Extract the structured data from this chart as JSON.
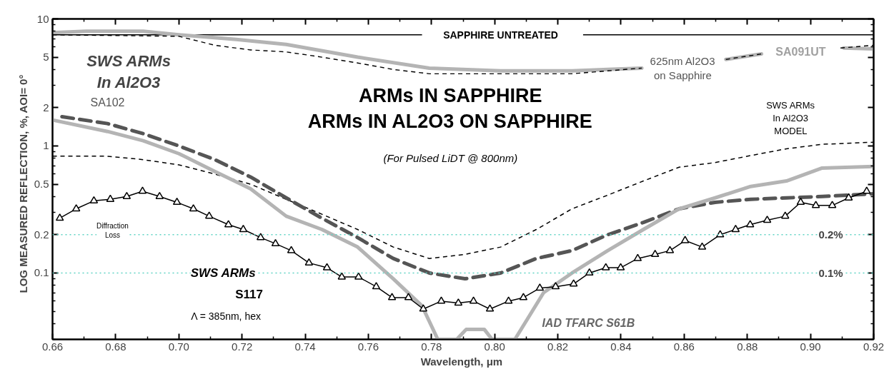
{
  "chart_data": {
    "type": "line",
    "title": "ARMs IN SAPPHIRE\nARMs IN AL2O3 ON SAPPHIRE",
    "subtitle": "(For Pulsed LiDT @ 800nm)",
    "xlabel": "Wavelength,  μm",
    "ylabel": "LOG MEASURED REFLECTION, %,    AOI= 0°",
    "log": "y",
    "xlim": [
      0.66,
      0.92
    ],
    "xticks": [
      0.66,
      {
        "value": 0.67,
        "label": null
      },
      0.68,
      {
        "value": 0.69,
        "label": null
      },
      "0.70",
      {
        "value": 0.71,
        "label": null
      },
      0.72,
      {
        "value": 0.73,
        "label": null
      },
      0.74,
      {
        "value": 0.75,
        "label": null
      },
      0.76,
      {
        "value": 0.77,
        "label": null
      },
      0.78,
      {
        "value": 0.79,
        "label": null
      },
      "0.80",
      {
        "value": 0.81,
        "label": null
      },
      0.82,
      {
        "value": 0.83,
        "label": null
      },
      0.84,
      {
        "value": 0.85,
        "label": null
      },
      0.86,
      {
        "value": 0.87,
        "label": null
      },
      0.88,
      {
        "value": 0.89,
        "label": null
      },
      "0.90",
      {
        "value": 0.91,
        "label": null
      },
      0.92
    ],
    "ylim": [
      0.03,
      10
    ],
    "yticks": [
      {
        "value": 0.03,
        "label": null
      },
      {
        "value": 0.04,
        "label": null
      },
      {
        "value": 0.05,
        "label": null
      },
      {
        "value": 0.06,
        "label": null
      },
      {
        "value": 0.07,
        "label": null
      },
      {
        "value": 0.08,
        "label": null
      },
      {
        "value": 0.09,
        "label": null
      },
      0.1,
      0.2,
      {
        "value": 0.3,
        "label": null
      },
      {
        "value": 0.4,
        "label": null
      },
      0.5,
      {
        "value": 0.6,
        "label": null
      },
      {
        "value": 0.7,
        "label": null
      },
      {
        "value": 0.8,
        "label": null
      },
      {
        "value": 0.9,
        "label": null
      },
      1,
      2,
      {
        "value": 3,
        "label": null
      },
      {
        "value": 4,
        "label": null
      },
      5,
      {
        "value": 6,
        "label": null
      },
      {
        "value": 7,
        "label": null
      },
      {
        "value": 8,
        "label": null
      },
      {
        "value": 9,
        "label": null
      },
      10
    ],
    "grid": false,
    "series": [
      {
        "color": "#000000",
        "line_style": "solid",
        "x": [
          0.66,
          0.777,
          0.8,
          0.828,
          0.92
        ],
        "values": [
          7.5,
          7.5,
          null,
          7.5,
          7.5
        ]
      },
      {
        "color": "#b4b4b4",
        "line_style": "solid",
        "x": [
          0.66,
          0.6706,
          0.6887,
          0.7,
          0.7182,
          0.734,
          0.7566,
          0.7793,
          0.8019,
          0.8245,
          0.8358,
          0.8466,
          0.86,
          0.8732,
          0.8845,
          0.897,
          0.9105,
          0.92
        ],
        "values": [
          7.8,
          8.0,
          8.0,
          7.5,
          6.9,
          6.3,
          5.0,
          4.1,
          3.9,
          3.9,
          4.0,
          4.1,
          null,
          4.8,
          5.3,
          null,
          5.9,
          5.8
        ]
      },
      {
        "color": "#000000",
        "line_style": "dashed",
        "x": [
          0.66,
          0.7,
          0.7114,
          0.7227,
          0.734,
          0.7453,
          0.7566,
          0.7679,
          0.7793,
          0.8019,
          0.8245,
          0.8358,
          0.8466,
          0.86,
          0.8732,
          0.8845,
          0.897,
          0.9095,
          0.92
        ],
        "values": [
          7.5,
          7.3,
          6.2,
          5.7,
          5.5,
          5.0,
          4.5,
          4.0,
          3.7,
          3.7,
          3.7,
          3.9,
          4.1,
          null,
          4.8,
          5.3,
          null,
          5.9,
          6.2
        ]
      },
      {
        "color": "#000000",
        "line_style": "dashed",
        "x": [
          0.66,
          0.6774,
          0.6887,
          0.7,
          0.7114,
          0.7227,
          0.734,
          0.7453,
          0.7566,
          0.7679,
          0.7793,
          0.7906,
          0.8019,
          0.8132,
          0.8245,
          0.8358,
          0.8471,
          0.8584,
          0.8698,
          0.8811,
          0.8924,
          0.9037,
          0.92
        ],
        "values": [
          0.83,
          0.83,
          0.78,
          0.71,
          0.6,
          0.5,
          0.38,
          0.29,
          0.22,
          0.16,
          0.13,
          0.14,
          0.16,
          0.22,
          0.32,
          0.41,
          0.53,
          0.68,
          0.74,
          0.84,
          0.95,
          1.03,
          1.07
        ]
      },
      {
        "color": "#555555",
        "line_style": "dashed",
        "x": [
          0.663,
          0.6774,
          0.6887,
          0.7,
          0.7114,
          0.7227,
          0.734,
          0.7453,
          0.7566,
          0.7679,
          0.7793,
          0.7906,
          0.8019,
          0.8132,
          0.8245,
          0.8358,
          0.8471,
          0.8584,
          0.8698,
          0.8811,
          0.8924,
          0.9037,
          0.92
        ],
        "values": [
          1.7,
          1.5,
          1.25,
          1.0,
          0.78,
          0.57,
          0.39,
          0.27,
          0.19,
          0.13,
          0.1,
          0.09,
          0.1,
          0.13,
          0.15,
          0.2,
          0.25,
          0.32,
          0.36,
          0.38,
          0.39,
          0.4,
          0.42
        ]
      },
      {
        "color": "#b4b4b4",
        "line_style": "solid",
        "x": [
          0.66,
          0.6774,
          0.6887,
          0.7,
          0.7114,
          0.7227,
          0.734,
          0.7453,
          0.7566,
          0.7679,
          0.777,
          0.782,
          0.788,
          0.791,
          0.7967,
          0.7992,
          0.8064,
          0.811,
          0.8155,
          0.8245,
          0.8358,
          0.8471,
          0.8584,
          0.8698,
          0.8811,
          0.8924,
          0.9037,
          0.92
        ],
        "values": [
          1.6,
          1.3,
          1.1,
          0.87,
          0.63,
          0.46,
          0.28,
          0.22,
          0.16,
          0.09,
          0.055,
          0.03,
          0.03,
          0.036,
          0.036,
          0.03,
          0.03,
          0.046,
          0.07,
          0.1,
          0.15,
          0.22,
          0.32,
          0.39,
          0.48,
          0.53,
          0.67,
          0.69
        ]
      },
      {
        "color": "#000000",
        "line_style": "solid",
        "marker": "triangle",
        "x": [
          0.6623,
          0.6675,
          0.6731,
          0.6783,
          0.6835,
          0.6885,
          0.6939,
          0.6994,
          0.7046,
          0.7096,
          0.7157,
          0.7204,
          0.7259,
          0.7306,
          0.7356,
          0.7412,
          0.7469,
          0.7516,
          0.7569,
          0.7625,
          0.7675,
          0.7727,
          0.7774,
          0.7831,
          0.7885,
          0.7933,
          0.7985,
          0.8044,
          0.8091,
          0.8143,
          0.8193,
          0.825,
          0.83,
          0.8352,
          0.8399,
          0.8453,
          0.8508,
          0.8555,
          0.8603,
          0.8657,
          0.8714,
          0.8763,
          0.8809,
          0.8863,
          0.892,
          0.8969,
          0.9017,
          0.9069,
          0.9121,
          0.9178
        ],
        "values": [
          0.27,
          0.32,
          0.37,
          0.38,
          0.4,
          0.44,
          0.4,
          0.36,
          0.32,
          0.28,
          0.24,
          0.22,
          0.19,
          0.17,
          0.15,
          0.12,
          0.11,
          0.093,
          0.093,
          0.078,
          0.064,
          0.064,
          0.052,
          0.06,
          0.058,
          0.06,
          0.052,
          0.06,
          0.064,
          0.076,
          0.078,
          0.082,
          0.1,
          0.11,
          0.11,
          0.13,
          0.14,
          0.15,
          0.18,
          0.16,
          0.2,
          0.22,
          0.24,
          0.26,
          0.28,
          0.36,
          0.34,
          0.34,
          0.39,
          0.44
        ]
      }
    ],
    "ref_lines": [
      {
        "axis": "y",
        "value": 0.2,
        "label": "0.2%",
        "color": "#5fd3c4",
        "line_style": "dotted"
      },
      {
        "axis": "y",
        "value": 0.1,
        "label": "0.1%",
        "color": "#5fd3c4",
        "line_style": "dotted"
      }
    ],
    "annotations": [
      "SAPPHIRE UNTREATED",
      "625nm Al2O3\non Sapphire",
      "SA091UT",
      "SWS ARMs\nIn Al2O3",
      "SA102",
      "SWS ARMs\nIn Al2O3\nMODEL",
      "Diffraction\nLoss",
      "SWS ARMs",
      "S117",
      "Λ = 385nm, hex",
      "IAD TFARC  S61B"
    ]
  }
}
